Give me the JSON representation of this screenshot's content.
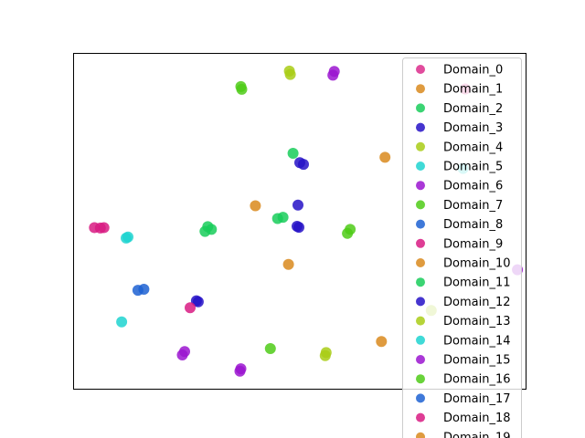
{
  "chart_data": {
    "type": "scatter",
    "title": "",
    "xlabel": "",
    "ylabel": "",
    "xlim": [
      0,
      100
    ],
    "ylim": [
      0,
      100
    ],
    "axes_ticks": false,
    "grid": false,
    "legend": {
      "placement": "top-right"
    },
    "series": [
      {
        "name": "Domain_0",
        "color": "#dc2d8c",
        "points": [
          [
            86.5,
            89.3
          ]
        ]
      },
      {
        "name": "Domain_1",
        "color": "#d98a1d",
        "points": [
          [
            68.8,
            69.0
          ],
          [
            40.2,
            54.6
          ],
          [
            47.5,
            37.2
          ],
          [
            68.0,
            14.3
          ]
        ]
      },
      {
        "name": "Domain_2",
        "color": "#19cc5a",
        "points": [
          [
            48.5,
            70.2
          ],
          [
            46.3,
            51.2
          ],
          [
            45.1,
            50.8
          ],
          [
            29.7,
            48.4
          ],
          [
            30.5,
            47.6
          ],
          [
            29.1,
            47.0
          ]
        ]
      },
      {
        "name": "Domain_3",
        "color": "#2612c7",
        "points": [
          [
            50.0,
            67.4
          ],
          [
            50.8,
            66.9
          ],
          [
            49.6,
            54.8
          ],
          [
            49.4,
            48.5
          ],
          [
            49.8,
            48.2
          ],
          [
            27.2,
            26.4
          ],
          [
            27.6,
            26.1
          ]
        ]
      },
      {
        "name": "Domain_4",
        "color": "#a9cc16",
        "points": [
          [
            47.7,
            94.6
          ],
          [
            47.9,
            93.6
          ],
          [
            55.8,
            11.0
          ],
          [
            55.6,
            10.1
          ]
        ]
      },
      {
        "name": "Domain_5",
        "color": "#1ed4d0",
        "points": [
          [
            86.0,
            65.7
          ],
          [
            12.1,
            45.3
          ],
          [
            11.7,
            45.0
          ],
          [
            10.7,
            20.1
          ]
        ]
      },
      {
        "name": "Domain_6",
        "color": "#9b15d0",
        "points": [
          [
            57.6,
            94.5
          ],
          [
            57.3,
            93.4
          ],
          [
            98.0,
            35.6
          ],
          [
            24.6,
            11.3
          ],
          [
            24.1,
            10.3
          ],
          [
            37.0,
            6.2
          ],
          [
            36.8,
            5.5
          ]
        ]
      },
      {
        "name": "Domain_7",
        "color": "#4fcb17",
        "points": [
          [
            37.0,
            90.0
          ],
          [
            37.2,
            89.2
          ],
          [
            61.1,
            47.6
          ],
          [
            60.5,
            46.4
          ],
          [
            43.5,
            12.2
          ]
        ]
      },
      {
        "name": "Domain_8",
        "color": "#1d62d2",
        "points": [
          [
            14.3,
            29.5
          ],
          [
            15.6,
            29.8
          ]
        ]
      },
      {
        "name": "Domain_9",
        "color": "#d81b82",
        "points": [
          [
            4.7,
            48.1
          ],
          [
            6.0,
            48.0
          ],
          [
            6.8,
            48.1
          ],
          [
            25.8,
            24.3
          ]
        ]
      },
      {
        "name": "Domain_10",
        "color": "#d98a1d",
        "points": []
      },
      {
        "name": "Domain_11",
        "color": "#19cc5a",
        "points": []
      },
      {
        "name": "Domain_12",
        "color": "#2612c7",
        "points": []
      },
      {
        "name": "Domain_13",
        "color": "#a9cc16",
        "points": [
          [
            79.0,
            23.5
          ]
        ]
      },
      {
        "name": "Domain_14",
        "color": "#1ed4d0",
        "points": []
      },
      {
        "name": "Domain_15",
        "color": "#9b15d0",
        "points": []
      },
      {
        "name": "Domain_16",
        "color": "#4fcb17",
        "points": []
      },
      {
        "name": "Domain_17",
        "color": "#1d62d2",
        "points": []
      },
      {
        "name": "Domain_18",
        "color": "#d81b82",
        "points": []
      },
      {
        "name": "Domain_19",
        "color": "#d98a1d",
        "points": []
      }
    ]
  }
}
